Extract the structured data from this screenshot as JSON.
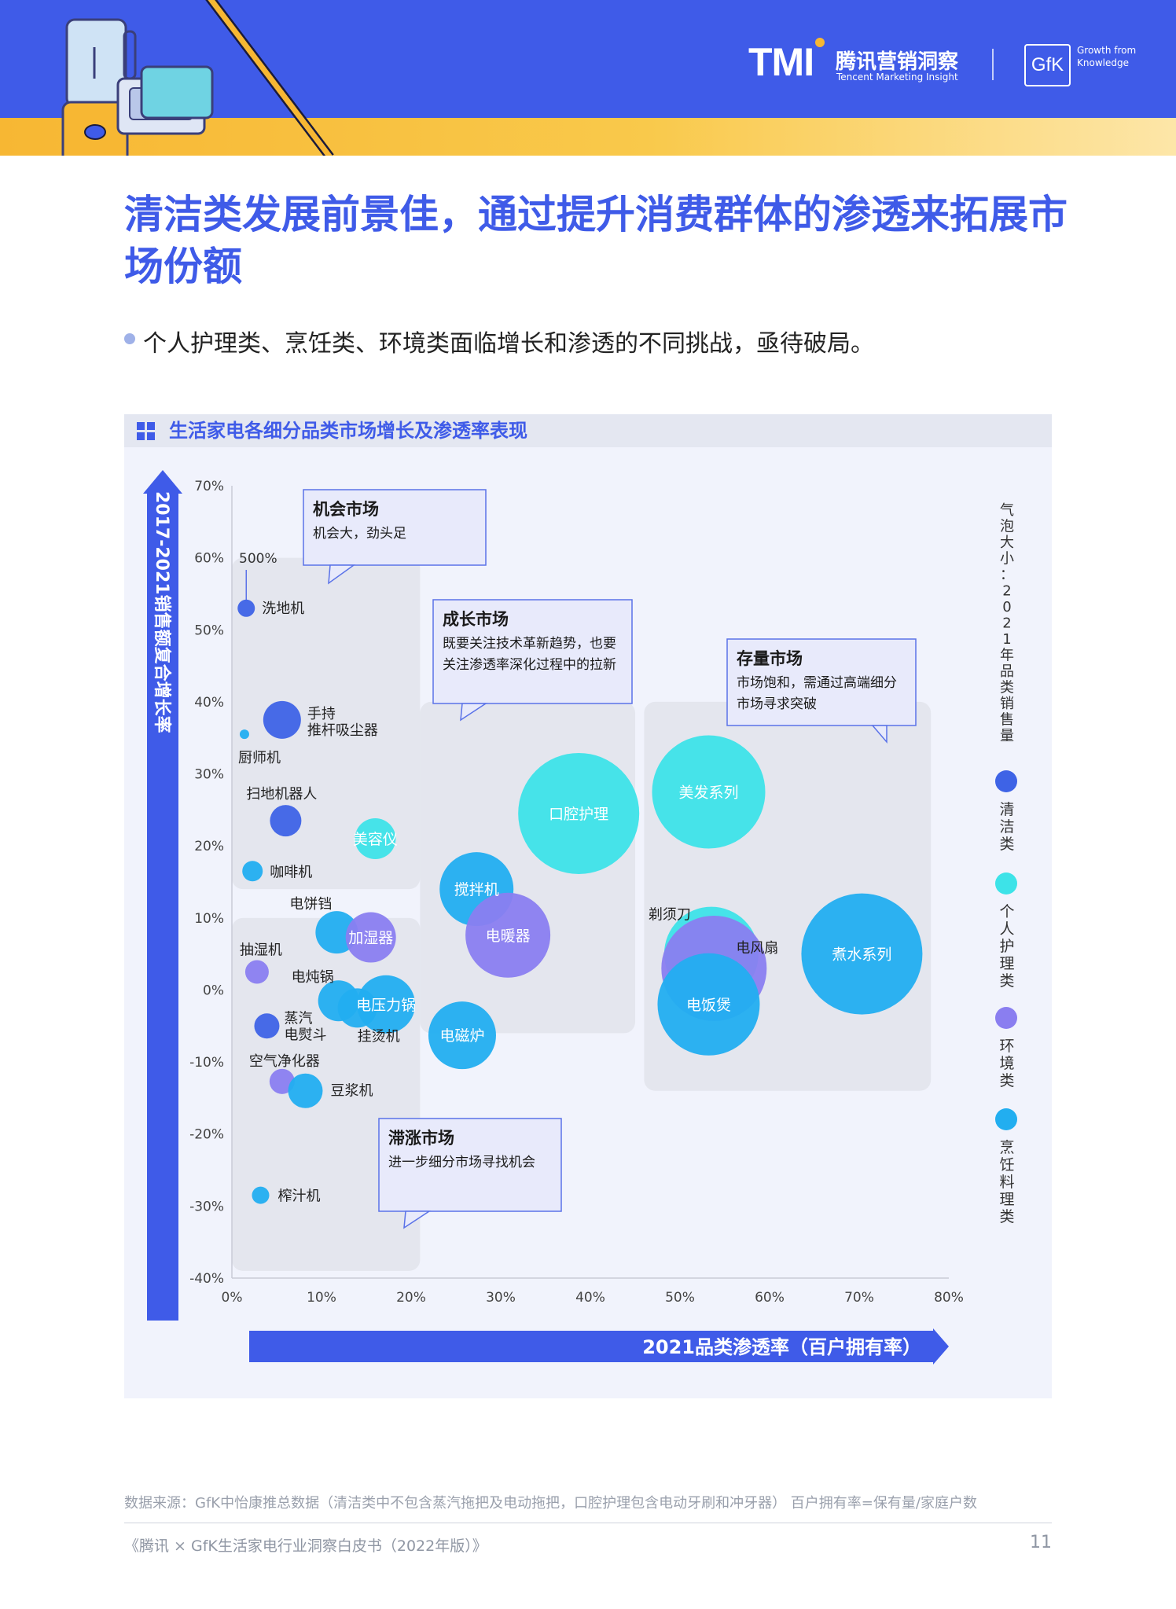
{
  "header": {
    "logo_text": "TMI",
    "brand_cn": "腾讯营销洞察",
    "brand_en": "Tencent Marketing Insight",
    "partner_logo": "GfK",
    "partner_tagline": "Growth from Knowledge"
  },
  "page": {
    "title": "清洁类发展前景佳，通过提升消费群体的渗透来拓展市场份额",
    "subtitle": "个人护理类、烹饪类、环境类面临增长和渗透的不同挑战，亟待破局。"
  },
  "colors": {
    "primary": "#3f5be8",
    "清洁类": "#3e63e6",
    "个人护理类": "#3de3e8",
    "环境类": "#8a7ef0",
    "烹饪料理类": "#22aef0",
    "zone": "#e2e4ec"
  },
  "chart_data": {
    "type": "scatter",
    "title": "生活家电各细分品类市场增长及渗透率表现",
    "xlabel": "2021品类渗透率（百户拥有率）",
    "ylabel": "2017-2021销售额复合增长率",
    "size_label": "气泡大小：2021年品类销售量",
    "xlim": [
      0,
      80
    ],
    "ylim": [
      -40,
      70
    ],
    "x_ticks": [
      "0%",
      "10%",
      "20%",
      "30%",
      "40%",
      "50%",
      "60%",
      "70%",
      "80%"
    ],
    "y_ticks": [
      "70%",
      "60%",
      "50%",
      "40%",
      "30%",
      "20%",
      "10%",
      "0%",
      "-10%",
      "-20%",
      "-30%",
      "-40%"
    ],
    "legend": [
      "清洁类",
      "个人护理类",
      "环境类",
      "烹饪料理类"
    ],
    "outlier_note": "500%",
    "zones": [
      {
        "name": "机会市场",
        "desc": "机会大，劲头足",
        "x": [
          0,
          21
        ],
        "y": [
          14,
          60
        ]
      },
      {
        "name": "成长市场",
        "desc": "既要关注技术革新趋势，也要关注渗透率深化过程中的拉新",
        "x": [
          21,
          45
        ],
        "y": [
          -6,
          40
        ]
      },
      {
        "name": "存量市场",
        "desc": "市场饱和，需通过高端细分市场寻求突破",
        "x": [
          46,
          78
        ],
        "y": [
          -14,
          40
        ]
      },
      {
        "name": "滞涨市场",
        "desc": "进一步细分市场寻找机会",
        "x": [
          0,
          21
        ],
        "y": [
          -39,
          10
        ]
      }
    ],
    "points": [
      {
        "name": "洗地机",
        "category": "清洁类",
        "x": 1.6,
        "y": 53,
        "size": 11
      },
      {
        "name": "手持推杆吸尘器",
        "label_lines": [
          "手持",
          "推杆吸尘器"
        ],
        "category": "清洁类",
        "x": 5.6,
        "y": 37.5,
        "size": 24
      },
      {
        "name": "厨师机",
        "category": "烹饪料理类",
        "x": 1.4,
        "y": 35.5,
        "size": 6
      },
      {
        "name": "扫地机器人",
        "category": "清洁类",
        "x": 6,
        "y": 23.5,
        "size": 20
      },
      {
        "name": "美容仪",
        "category": "个人护理类",
        "x": 16,
        "y": 21,
        "size": 26
      },
      {
        "name": "咖啡机",
        "category": "烹饪料理类",
        "x": 2.3,
        "y": 16.5,
        "size": 13
      },
      {
        "name": "电饼铛",
        "category": "烹饪料理类",
        "x": 11.7,
        "y": 8,
        "size": 27
      },
      {
        "name": "加湿器",
        "category": "环境类",
        "x": 15.5,
        "y": 7.3,
        "size": 32
      },
      {
        "name": "抽湿机",
        "category": "环境类",
        "x": 2.8,
        "y": 2.5,
        "size": 15
      },
      {
        "name": "电炖锅",
        "category": "烹饪料理类",
        "x": 11.9,
        "y": -1.5,
        "size": 26
      },
      {
        "name": "电压力锅",
        "category": "烹饪料理类",
        "x": 17.2,
        "y": -2,
        "size": 37
      },
      {
        "name": "蒸汽电熨斗",
        "label_lines": [
          "蒸汽",
          "电熨斗"
        ],
        "category": "清洁类",
        "x": 3.9,
        "y": -5,
        "size": 16
      },
      {
        "name": "挂烫机",
        "category": "烹饪料理类",
        "x": 14,
        "y": -2.5,
        "size": 25
      },
      {
        "name": "空气净化器",
        "category": "环境类",
        "x": 5.6,
        "y": -12.7,
        "size": 16
      },
      {
        "name": "豆浆机",
        "category": "烹饪料理类",
        "x": 8.2,
        "y": -14,
        "size": 22
      },
      {
        "name": "榨汁机",
        "category": "烹饪料理类",
        "x": 3.2,
        "y": -28.5,
        "size": 11
      },
      {
        "name": "口腔护理",
        "category": "个人护理类",
        "x": 38.7,
        "y": 24.5,
        "size": 77
      },
      {
        "name": "搅拌机",
        "category": "烹饪料理类",
        "x": 27.3,
        "y": 14,
        "size": 47
      },
      {
        "name": "电暖器",
        "category": "环境类",
        "x": 30.8,
        "y": 7.6,
        "size": 54
      },
      {
        "name": "电磁炉",
        "category": "烹饪料理类",
        "x": 25.7,
        "y": -6.3,
        "size": 43
      },
      {
        "name": "美发系列",
        "category": "个人护理类",
        "x": 53.2,
        "y": 27.5,
        "size": 72
      },
      {
        "name": "剃须刀",
        "category": "个人护理类",
        "x": 53.5,
        "y": 5,
        "size": 60
      },
      {
        "name": "电风扇",
        "category": "环境类",
        "x": 53.8,
        "y": 3,
        "size": 67
      },
      {
        "name": "电饭煲",
        "category": "烹饪料理类",
        "x": 53.2,
        "y": -2,
        "size": 65
      },
      {
        "name": "煮水系列",
        "category": "烹饪料理类",
        "x": 70.3,
        "y": 5,
        "size": 77
      }
    ]
  },
  "footer": {
    "source": "数据来源：GfK中怡康推总数据（清洁类中不包含蒸汽拖把及电动拖把，口腔护理包含电动牙刷和冲牙器）  百户拥有率=保有量/家庭户数",
    "book": "《腾讯 × GfK生活家电行业洞察白皮书（2022年版）》",
    "page_number": "11"
  }
}
